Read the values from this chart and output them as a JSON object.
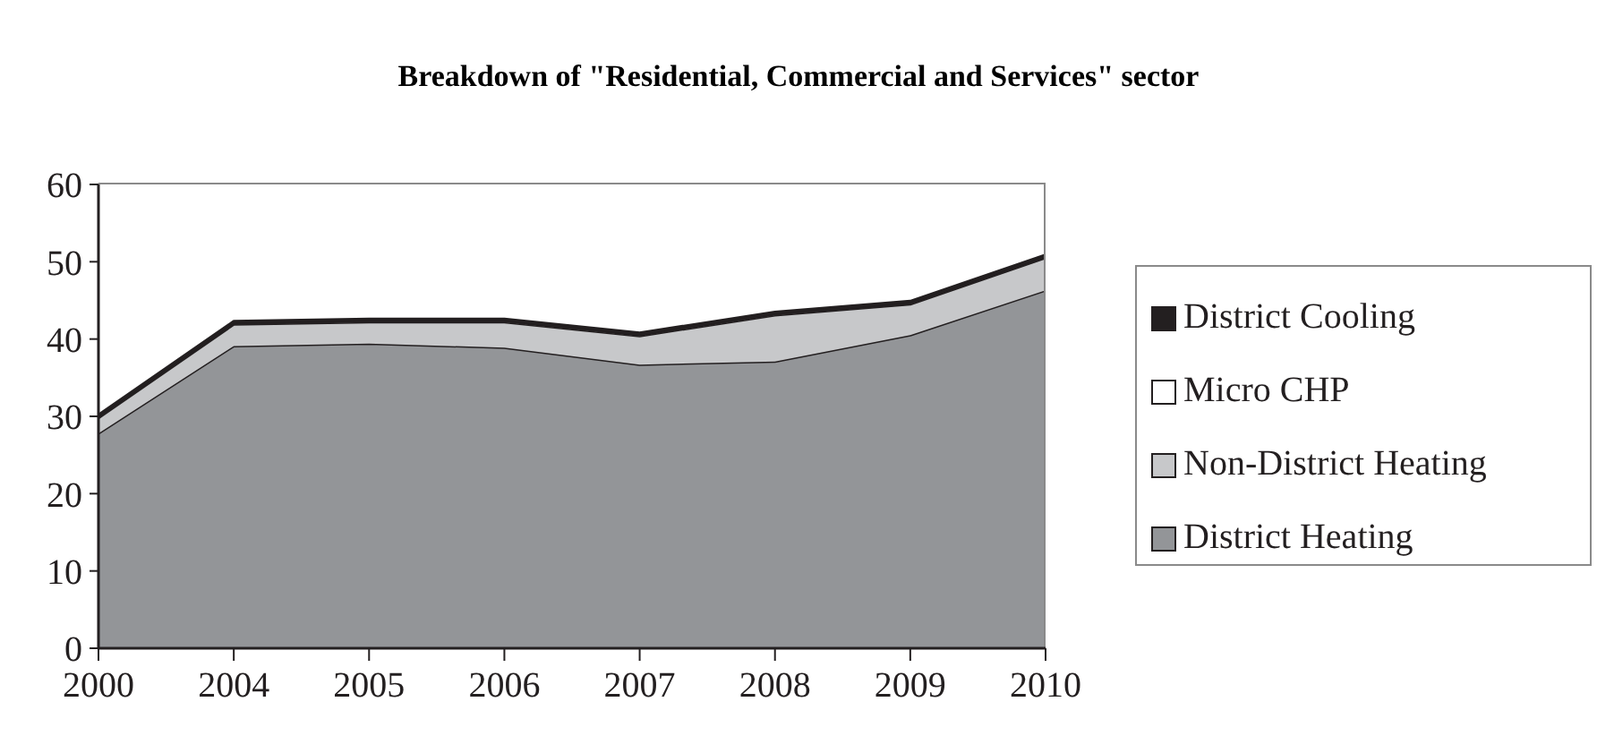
{
  "chart_data": {
    "type": "area",
    "title": "Breakdown of \"Residential, Commercial and Services\" sector",
    "categories": [
      "2000",
      "2004",
      "2005",
      "2006",
      "2007",
      "2008",
      "2009",
      "2010"
    ],
    "stacked": true,
    "ylim": [
      0,
      60
    ],
    "yticks": [
      0,
      10,
      20,
      30,
      40,
      50,
      60
    ],
    "legend": "right",
    "series": [
      {
        "name": "District Heating",
        "color": "#939598",
        "values": [
          27.8,
          39.1,
          39.4,
          38.9,
          36.7,
          37.1,
          40.5,
          46.3
        ]
      },
      {
        "name": "Non-District Heating",
        "color": "#c7c8ca",
        "values": [
          2.0,
          2.8,
          2.8,
          3.3,
          3.7,
          6.0,
          4.0,
          4.2
        ]
      },
      {
        "name": "Micro CHP",
        "color": "#ffffff",
        "values": [
          0.1,
          0.1,
          0.1,
          0.1,
          0.1,
          0.1,
          0.1,
          0.1
        ]
      },
      {
        "name": "District Cooling",
        "color": "#231f20",
        "values": [
          0.3,
          0.3,
          0.3,
          0.3,
          0.3,
          0.3,
          0.3,
          0.3
        ]
      }
    ]
  }
}
